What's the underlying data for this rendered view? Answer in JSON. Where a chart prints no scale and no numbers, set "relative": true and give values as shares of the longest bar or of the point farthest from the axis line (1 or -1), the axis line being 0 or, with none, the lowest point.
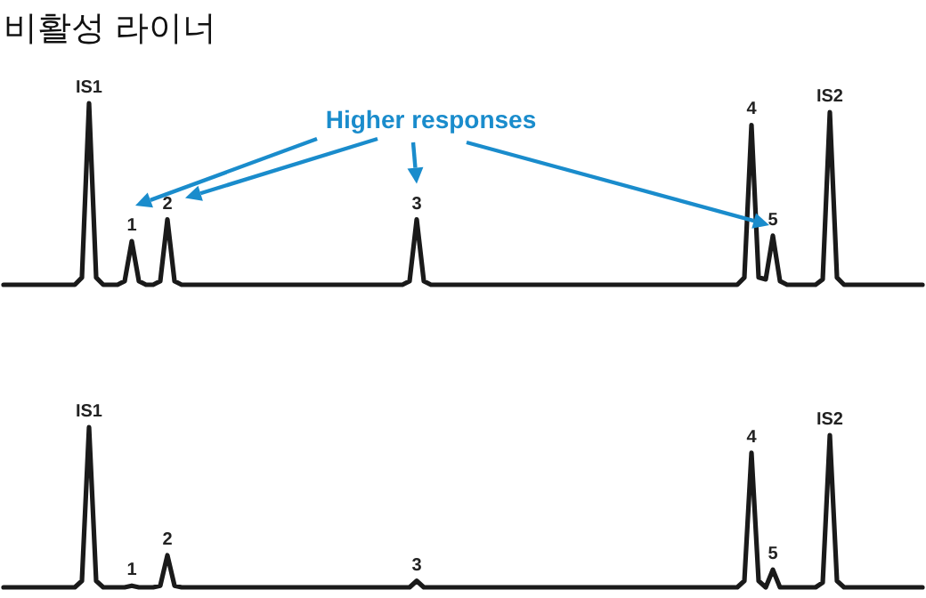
{
  "chart_data": [
    {
      "type": "line",
      "title": "비활성 라이너",
      "relative": true,
      "annotations": [
        "Higher responses"
      ],
      "categories": [
        null,
        null,
        null,
        null,
        null,
        null,
        null,
        null,
        null,
        null,
        null,
        null,
        "IS1",
        null,
        null,
        null,
        null,
        null,
        "1",
        null,
        null,
        null,
        null,
        "2",
        null,
        null,
        null,
        null,
        null,
        null,
        null,
        null,
        null,
        null,
        null,
        null,
        null,
        null,
        null,
        null,
        null,
        null,
        null,
        null,
        null,
        null,
        null,
        null,
        null,
        null,
        null,
        null,
        null,
        null,
        null,
        null,
        null,
        null,
        "3",
        null,
        null,
        null,
        null,
        null,
        null,
        null,
        null,
        null,
        null,
        null,
        null,
        null,
        null,
        null,
        null,
        null,
        null,
        null,
        null,
        null,
        null,
        null,
        null,
        null,
        null,
        null,
        null,
        null,
        null,
        null,
        null,
        null,
        null,
        null,
        null,
        null,
        null,
        null,
        null,
        null,
        null,
        null,
        null,
        null,
        null,
        "4",
        null,
        null,
        "5",
        null,
        null,
        null,
        null,
        null,
        null,
        null,
        "IS2",
        null,
        null,
        null,
        null,
        null,
        null,
        null,
        null,
        null,
        null,
        null,
        null,
        null
      ],
      "series": [
        {
          "color": "#1a1a1a",
          "values": [
            0,
            0,
            0,
            0,
            0,
            0,
            0,
            0,
            0,
            0,
            0,
            0.04,
            1,
            0.04,
            0,
            0,
            0,
            0.02,
            0.24,
            0.02,
            0,
            0,
            0.02,
            0.36,
            0.02,
            0,
            0,
            0,
            0,
            0,
            0,
            0,
            0,
            0,
            0,
            0,
            0,
            0,
            0,
            0,
            0,
            0,
            0,
            0,
            0,
            0,
            0,
            0,
            0,
            0,
            0,
            0,
            0,
            0,
            0,
            0,
            0,
            0.02,
            0.36,
            0.02,
            0,
            0,
            0,
            0,
            0,
            0,
            0,
            0,
            0,
            0,
            0,
            0,
            0,
            0,
            0,
            0,
            0,
            0,
            0,
            0,
            0,
            0,
            0,
            0,
            0,
            0,
            0,
            0,
            0,
            0,
            0,
            0,
            0,
            0,
            0,
            0,
            0,
            0,
            0,
            0,
            0,
            0,
            0,
            0,
            0.04,
            0.88,
            0.04,
            0.03,
            0.27,
            0.02,
            0,
            0,
            0,
            0,
            0,
            0.03,
            0.95,
            0.04,
            0,
            0,
            0,
            0,
            0,
            0,
            0,
            0,
            0,
            0,
            0,
            0
          ]
        }
      ]
    },
    {
      "type": "line",
      "relative": true,
      "categories": [
        null,
        null,
        null,
        null,
        null,
        null,
        null,
        null,
        null,
        null,
        null,
        null,
        "IS1",
        null,
        null,
        null,
        null,
        null,
        "1",
        null,
        null,
        null,
        null,
        "2",
        null,
        null,
        null,
        null,
        null,
        null,
        null,
        null,
        null,
        null,
        null,
        null,
        null,
        null,
        null,
        null,
        null,
        null,
        null,
        null,
        null,
        null,
        null,
        null,
        null,
        null,
        null,
        null,
        null,
        null,
        null,
        null,
        null,
        null,
        "3",
        null,
        null,
        null,
        null,
        null,
        null,
        null,
        null,
        null,
        null,
        null,
        null,
        null,
        null,
        null,
        null,
        null,
        null,
        null,
        null,
        null,
        null,
        null,
        null,
        null,
        null,
        null,
        null,
        null,
        null,
        null,
        null,
        null,
        null,
        null,
        null,
        null,
        null,
        null,
        null,
        null,
        null,
        null,
        null,
        null,
        null,
        "4",
        null,
        null,
        "5",
        null,
        null,
        null,
        null,
        null,
        null,
        null,
        "IS2",
        null,
        null,
        null,
        null,
        null,
        null,
        null,
        null,
        null,
        null,
        null,
        null,
        null
      ],
      "series": [
        {
          "color": "#1a1a1a",
          "values": [
            0,
            0,
            0,
            0,
            0,
            0,
            0,
            0,
            0,
            0,
            0,
            0.04,
            1,
            0.04,
            0,
            0,
            0,
            0,
            0.01,
            0,
            0,
            0,
            0.01,
            0.2,
            0.01,
            0,
            0,
            0,
            0,
            0,
            0,
            0,
            0,
            0,
            0,
            0,
            0,
            0,
            0,
            0,
            0,
            0,
            0,
            0,
            0,
            0,
            0,
            0,
            0,
            0,
            0,
            0,
            0,
            0,
            0,
            0,
            0,
            0,
            0.04,
            0,
            0,
            0,
            0,
            0,
            0,
            0,
            0,
            0,
            0,
            0,
            0,
            0,
            0,
            0,
            0,
            0,
            0,
            0,
            0,
            0,
            0,
            0,
            0,
            0,
            0,
            0,
            0,
            0,
            0,
            0,
            0,
            0,
            0,
            0,
            0,
            0,
            0,
            0,
            0,
            0,
            0,
            0,
            0,
            0,
            0.04,
            0.84,
            0.04,
            0,
            0.11,
            0,
            0,
            0,
            0,
            0,
            0,
            0.03,
            0.95,
            0.04,
            0,
            0,
            0,
            0,
            0,
            0,
            0,
            0,
            0,
            0,
            0,
            0
          ]
        }
      ]
    }
  ]
}
